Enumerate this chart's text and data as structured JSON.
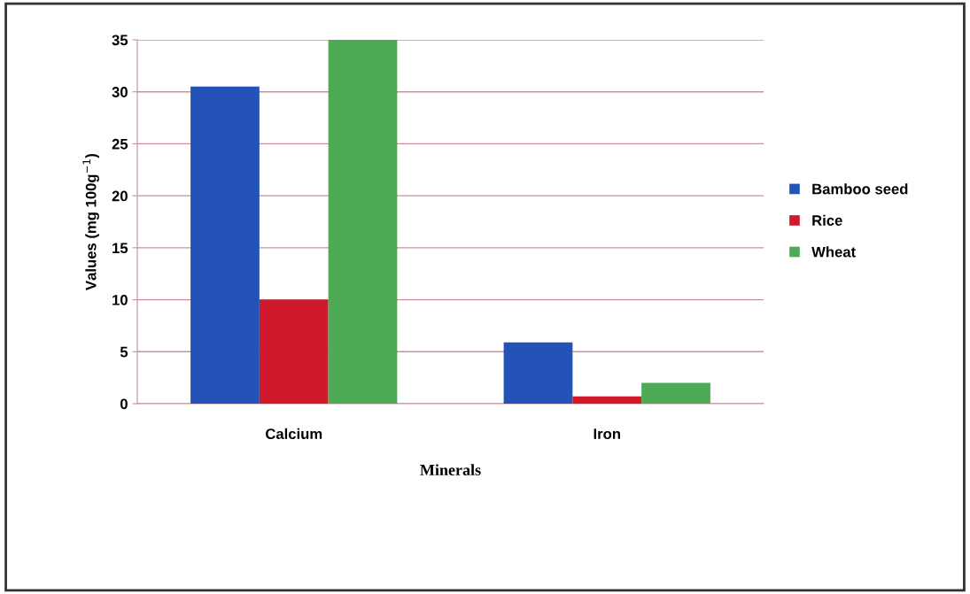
{
  "chart_data": {
    "type": "bar",
    "xlabel": "Minerals",
    "ylabel": "Values (mg 100g$^{−1}$)",
    "categories": [
      "Calcium",
      "Iron"
    ],
    "series": [
      {
        "name": "Bamboo seed",
        "color": "#2453b8",
        "values": [
          30.5,
          5.9
        ]
      },
      {
        "name": "Rice",
        "color": "#d01a2c",
        "values": [
          10.0,
          0.7
        ]
      },
      {
        "name": "Wheat",
        "color": "#4daa55",
        "values": [
          35.0,
          2.0
        ]
      }
    ],
    "ylim": [
      0,
      35
    ],
    "yticks": [
      0,
      5,
      10,
      15,
      20,
      25,
      30,
      35
    ],
    "grid": "y",
    "legend": "right"
  }
}
